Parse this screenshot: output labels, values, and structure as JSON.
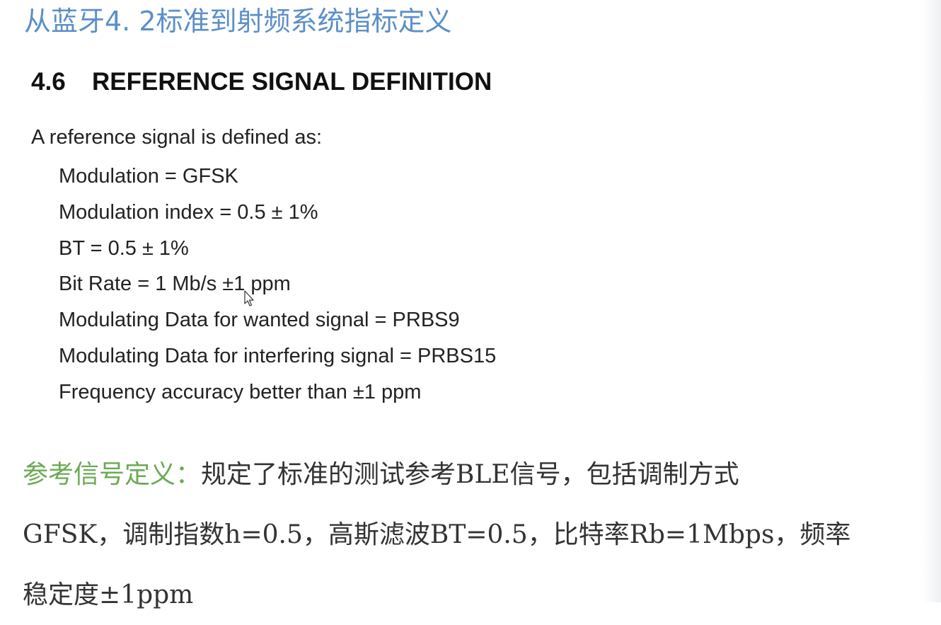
{
  "slide_title": "从蓝牙4. 2标准到射频系统指标定义",
  "section": {
    "number": "4.6",
    "title": "REFERENCE SIGNAL DEFINITION"
  },
  "intro": "A reference signal is defined as:",
  "definitions": [
    "Modulation = GFSK",
    "Modulation index = 0.5 ± 1%",
    "BT = 0.5 ± 1%",
    "Bit Rate = 1 Mb/s ±1 ppm",
    "Modulating Data for wanted signal = PRBS9",
    "Modulating Data for interfering signal = PRBS15",
    "Frequency accuracy better than ±1 ppm"
  ],
  "chinese_note": {
    "label": "参考信号定义：",
    "line1": "规定了标准的测试参考BLE信号，包括调制方式",
    "line2": "GFSK，调制指数h=0.5，高斯滤波BT=0.5，比特率Rb=1Mbps，频率",
    "line3": "稳定度±1ppm"
  },
  "colors": {
    "title": "#5b8fc9",
    "label": "#6aaa55",
    "body": "#222222"
  },
  "icons": {
    "cursor": "mouse-pointer-icon"
  }
}
